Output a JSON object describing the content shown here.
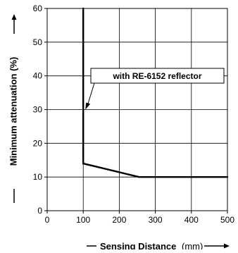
{
  "chart_data": {
    "type": "line",
    "xlabel": "Sensing Distance",
    "xunit": "(mm)",
    "ylabel": "Minimum attenuation (%)",
    "xlim": [
      0,
      500
    ],
    "ylim": [
      0,
      60
    ],
    "xticks": [
      0,
      100,
      200,
      300,
      400,
      500
    ],
    "yticks": [
      0,
      10,
      20,
      30,
      40,
      50,
      60
    ],
    "grid": true,
    "series": [
      {
        "name": "",
        "points": [
          [
            100,
            60
          ],
          [
            100,
            14
          ],
          [
            255,
            10
          ],
          [
            500,
            10
          ]
        ],
        "color": "#000000"
      }
    ],
    "annotations": [
      {
        "text": "with RE-6152 reflector",
        "point": [
          100,
          30
        ]
      }
    ]
  }
}
